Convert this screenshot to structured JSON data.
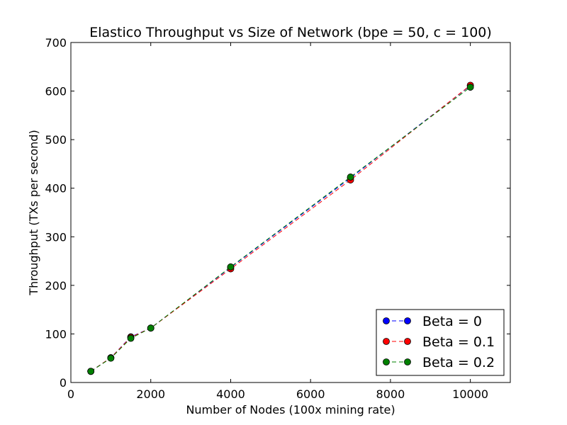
{
  "chart_data": {
    "type": "line",
    "title": "Elastico Throughput vs Size of Network (bpe = 50, c = 100)",
    "xlabel": "Number of Nodes (100x mining rate)",
    "ylabel": "Throughput (TXs per second)",
    "xlim": [
      0,
      11000
    ],
    "ylim": [
      0,
      700
    ],
    "xticks": [
      0,
      2000,
      4000,
      6000,
      8000,
      10000
    ],
    "yticks": [
      0,
      100,
      200,
      300,
      400,
      500,
      600,
      700
    ],
    "grid": false,
    "legend_position": "lower-right",
    "line_style": "dashed",
    "marker": "circle",
    "x": [
      500,
      1000,
      1500,
      2000,
      4000,
      7000,
      10000
    ],
    "series": [
      {
        "name": "Beta = 0",
        "color": "#0000ff",
        "values": [
          23,
          51,
          94,
          112,
          237,
          421,
          611
        ]
      },
      {
        "name": "Beta = 0.1",
        "color": "#ff0000",
        "values": [
          23,
          51,
          93,
          112,
          234,
          417,
          612
        ]
      },
      {
        "name": "Beta = 0.2",
        "color": "#008000",
        "values": [
          23,
          50,
          91,
          112,
          238,
          423,
          608
        ]
      }
    ]
  }
}
